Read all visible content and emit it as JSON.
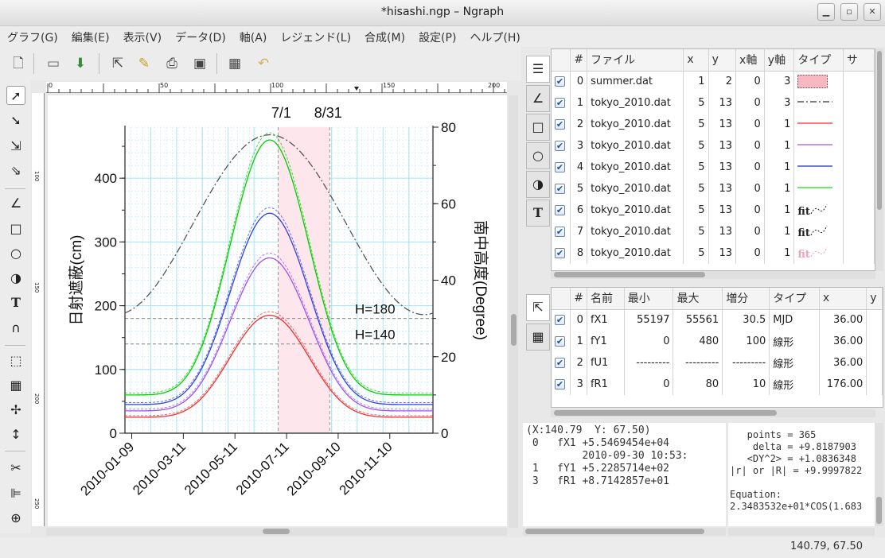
{
  "window": {
    "title": "*hisashi.ngp – Ngraph"
  },
  "menu": [
    "グラフ(G)",
    "編集(E)",
    "表示(V)",
    "データ(D)",
    "軸(A)",
    "レジェンド(L)",
    "合成(M)",
    "設定(P)",
    "ヘルプ(H)"
  ],
  "ruler": {
    "top_ticks": [
      "0",
      "50",
      "100",
      "150",
      "200"
    ],
    "left_ticks": [
      "100",
      "150",
      "200",
      "250"
    ]
  },
  "chart_data": {
    "type": "line",
    "x_tick_labels": [
      "2010-01-09",
      "2010-03-11",
      "2010-05-11",
      "2010-07-11",
      "2010-09-10",
      "2010-11-10"
    ],
    "x_range_mjd": [
      55197,
      55561
    ],
    "ylabel_left": "日射遮蔽(cm)",
    "ylim_left": [
      0,
      480
    ],
    "yticks_left": [
      "0",
      "100",
      "200",
      "300",
      "400"
    ],
    "ylabel_right": "南中高度(Degree)",
    "ylim_right": [
      0,
      80
    ],
    "yticks_right": [
      "0",
      "20",
      "40",
      "60",
      "80"
    ],
    "annotations": {
      "start": "7/1",
      "end": "8/31",
      "h1": "H=180",
      "h2": "H=140"
    },
    "summer_band": {
      "from": "7/1",
      "to": "8/31"
    },
    "hlines": [
      180,
      140
    ],
    "series": [
      {
        "color": "#555555",
        "style": "dashdot",
        "axis": "right",
        "min": 31,
        "peak": 78,
        "peak_date": "2010-06-21"
      },
      {
        "color": "#00d000",
        "axis": "left",
        "min": 60,
        "peak": 460,
        "peak_date": "2010-06-21"
      },
      {
        "color": "#3040e0",
        "axis": "left",
        "min": 45,
        "peak": 345,
        "peak_date": "2010-06-21"
      },
      {
        "color": "#a050f0",
        "axis": "left",
        "min": 35,
        "peak": 275,
        "peak_date": "2010-06-21"
      },
      {
        "color": "#f03030",
        "axis": "left",
        "min": 25,
        "peak": 185,
        "peak_date": "2010-06-21"
      }
    ]
  },
  "file_table": {
    "headers": [
      "#",
      "ファイル",
      "x",
      "y",
      "x軸",
      "y軸",
      "タイプ",
      "サ"
    ],
    "rows": [
      {
        "n": "0",
        "file": "summer.dat",
        "x": "1",
        "y": "2",
        "xa": "0",
        "ya": "3",
        "type": "box",
        "color": "#f7b8c2"
      },
      {
        "n": "1",
        "file": "tokyo_2010.dat",
        "x": "5",
        "y": "13",
        "xa": "0",
        "ya": "3",
        "type": "dashdot",
        "color": "#555555"
      },
      {
        "n": "2",
        "file": "tokyo_2010.dat",
        "x": "5",
        "y": "13",
        "xa": "0",
        "ya": "1",
        "type": "line",
        "color": "#f05050"
      },
      {
        "n": "3",
        "file": "tokyo_2010.dat",
        "x": "5",
        "y": "13",
        "xa": "0",
        "ya": "1",
        "type": "line",
        "color": "#b070f0"
      },
      {
        "n": "4",
        "file": "tokyo_2010.dat",
        "x": "5",
        "y": "13",
        "xa": "0",
        "ya": "1",
        "type": "line",
        "color": "#4050d0"
      },
      {
        "n": "5",
        "file": "tokyo_2010.dat",
        "x": "5",
        "y": "13",
        "xa": "0",
        "ya": "1",
        "type": "line",
        "color": "#40e040"
      },
      {
        "n": "6",
        "file": "tokyo_2010.dat",
        "x": "5",
        "y": "13",
        "xa": "0",
        "ya": "1",
        "type": "fit",
        "color": "#222222"
      },
      {
        "n": "7",
        "file": "tokyo_2010.dat",
        "x": "5",
        "y": "13",
        "xa": "0",
        "ya": "1",
        "type": "fit",
        "color": "#222222"
      },
      {
        "n": "8",
        "file": "tokyo_2010.dat",
        "x": "5",
        "y": "13",
        "xa": "0",
        "ya": "1",
        "type": "fit",
        "color": "#f0a0c0"
      }
    ],
    "fit_label": "fit"
  },
  "axis_table": {
    "headers": [
      "#",
      "名前",
      "最小",
      "最大",
      "増分",
      "タイプ",
      "x",
      "y"
    ],
    "rows": [
      {
        "n": "0",
        "name": "fX1",
        "min": "55197",
        "max": "55561",
        "inc": "30.5",
        "type": "MJD",
        "x": "36.00"
      },
      {
        "n": "1",
        "name": "fY1",
        "min": "0",
        "max": "480",
        "inc": "100",
        "type": "線形",
        "x": "36.00"
      },
      {
        "n": "2",
        "name": "fU1",
        "min": "---------",
        "max": "---------",
        "inc": "---------",
        "type": "線形",
        "x": "36.00"
      },
      {
        "n": "3",
        "name": "fR1",
        "min": "0",
        "max": "80",
        "inc": "10",
        "type": "線形",
        "x": "176.00"
      }
    ]
  },
  "info_left": {
    "lines": [
      "(X:140.79  Y: 67.50)",
      " 0   fX1 +5.5469454e+04",
      "         2010-09-30 10:53:",
      " 1   fY1 +5.2285714e+02",
      " 3   fR1 +8.7142857e+01"
    ]
  },
  "info_right": {
    "lines": [
      "   points = 365",
      "    delta = +9.8187903",
      "   <DY^2> = +1.0836348",
      "|r| or |R| = +9.9997822",
      "",
      "Equation:",
      "2.3483532e+01*COS(1.683"
    ]
  },
  "status": {
    "coord": "140.79,  67.50"
  }
}
